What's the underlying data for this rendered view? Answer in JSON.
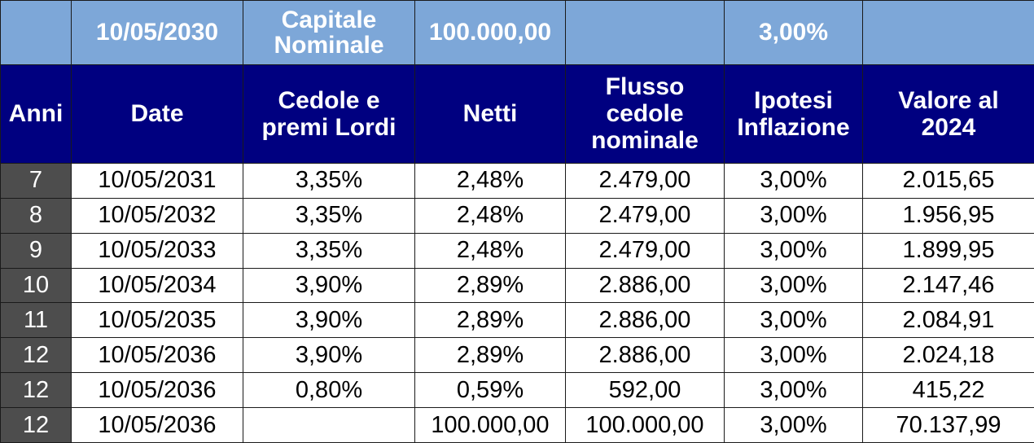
{
  "top_row": {
    "anni": "",
    "date": "10/05/2030",
    "label_line1": "Capitale",
    "label_line2": "Nominale",
    "capital": "100.000,00",
    "flusso": "",
    "inflation": "3,00%",
    "valore": ""
  },
  "columns": {
    "anni": "Anni",
    "date": "Date",
    "cedole": [
      "Cedole e",
      "premi Lordi"
    ],
    "netti": "Netti",
    "flusso": [
      "Flusso",
      "cedole",
      "nominale"
    ],
    "inflazione": [
      "Ipotesi",
      "Inflazione"
    ],
    "valore": [
      "Valore al",
      "2024"
    ]
  },
  "rows": [
    {
      "anni": "7",
      "date": "10/05/2031",
      "cedole": "3,35%",
      "netti": "2,48%",
      "flusso": "2.479,00",
      "inflazione": "3,00%",
      "valore": "2.015,65"
    },
    {
      "anni": "8",
      "date": "10/05/2032",
      "cedole": "3,35%",
      "netti": "2,48%",
      "flusso": "2.479,00",
      "inflazione": "3,00%",
      "valore": "1.956,95"
    },
    {
      "anni": "9",
      "date": "10/05/2033",
      "cedole": "3,35%",
      "netti": "2,48%",
      "flusso": "2.479,00",
      "inflazione": "3,00%",
      "valore": "1.899,95"
    },
    {
      "anni": "10",
      "date": "10/05/2034",
      "cedole": "3,90%",
      "netti": "2,89%",
      "flusso": "2.886,00",
      "inflazione": "3,00%",
      "valore": "2.147,46"
    },
    {
      "anni": "11",
      "date": "10/05/2035",
      "cedole": "3,90%",
      "netti": "2,89%",
      "flusso": "2.886,00",
      "inflazione": "3,00%",
      "valore": "2.084,91"
    },
    {
      "anni": "12",
      "date": "10/05/2036",
      "cedole": "3,90%",
      "netti": "2,89%",
      "flusso": "2.886,00",
      "inflazione": "3,00%",
      "valore": "2.024,18"
    },
    {
      "anni": "12",
      "date": "10/05/2036",
      "cedole": "0,80%",
      "netti": "0,59%",
      "flusso": "592,00",
      "inflazione": "3,00%",
      "valore": "415,22"
    },
    {
      "anni": "12",
      "date": "10/05/2036",
      "cedole": "",
      "netti": "100.000,00",
      "flusso": "100.000,00",
      "inflazione": "3,00%",
      "valore": "70.137,99"
    }
  ]
}
